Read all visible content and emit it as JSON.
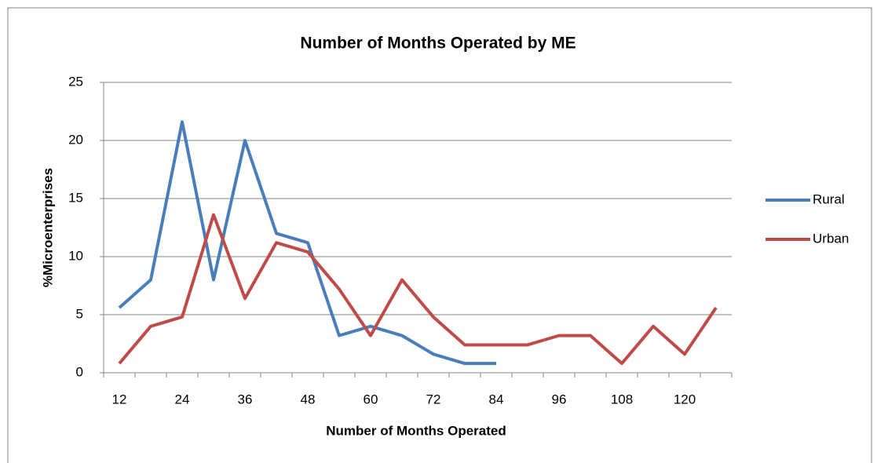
{
  "chart_data": {
    "type": "line",
    "title": "Number of Months Operated by ME",
    "x_label": "Number of Months Operated",
    "y_label": "%Microenterprises",
    "categories": [
      "12",
      null,
      "24",
      null,
      "36",
      null,
      "48",
      null,
      "60",
      null,
      "72",
      null,
      "84",
      null,
      "96",
      null,
      "108",
      null,
      "120",
      null
    ],
    "series": [
      {
        "name": "Rural",
        "color": "#4a7ebb",
        "values": [
          5.6,
          8,
          21.6,
          8,
          20,
          12,
          11.2,
          3.2,
          4,
          3.2,
          1.6,
          0.8,
          0.8,
          null,
          null,
          null,
          null,
          null,
          null,
          null
        ]
      },
      {
        "name": "Urban",
        "color": "#be4b48",
        "values": [
          0.8,
          4,
          4.8,
          13.6,
          6.4,
          11.2,
          10.4,
          7.2,
          3.2,
          8,
          4.8,
          2.4,
          2.4,
          2.4,
          3.2,
          3.2,
          0.8,
          4,
          1.6,
          5.6
        ]
      }
    ],
    "ylim": [
      0,
      25
    ],
    "yticks": [
      0,
      5,
      10,
      15,
      20,
      25
    ],
    "grid": true,
    "legend": "right"
  }
}
